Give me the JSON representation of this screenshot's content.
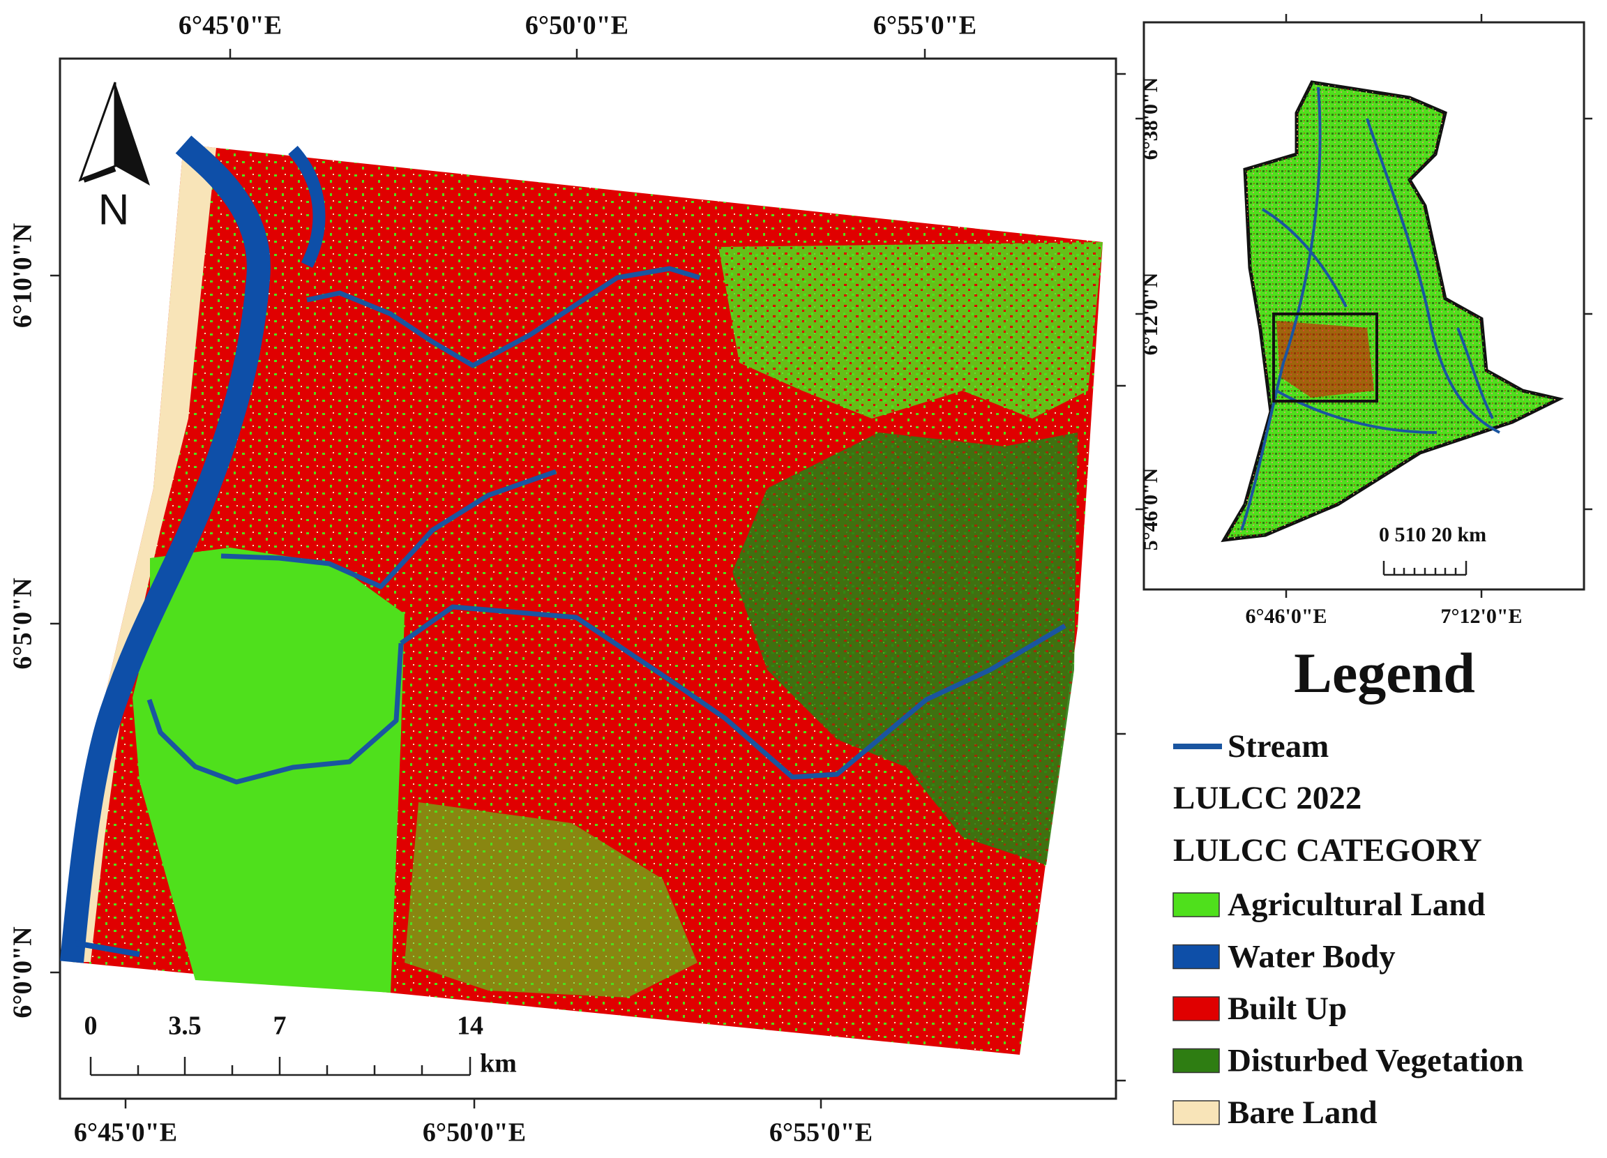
{
  "main_map": {
    "top_labels": [
      "6°45'0\"E",
      "6°50'0\"E",
      "6°55'0\"E"
    ],
    "bottom_labels": [
      "6°45'0\"E",
      "6°50'0\"E",
      "6°55'0\"E"
    ],
    "left_labels": [
      "6°10'0\"N",
      "6°5'0\"N",
      "6°0'0\"N"
    ],
    "north": "N",
    "scale_labels": [
      "0",
      "3.5",
      "7",
      "14"
    ],
    "scale_unit": "km"
  },
  "inset_map": {
    "left_labels": [
      "6°38'0\"N",
      "6°12'0\"N",
      "5°46'0\"N"
    ],
    "bottom_labels": [
      "6°46'0\"E",
      "7°12'0\"E"
    ],
    "scale_label": "0 510 20 km"
  },
  "legend": {
    "title": "Legend",
    "stream": {
      "name": "Stream",
      "color": "#1a55a0"
    },
    "year": "LULCC 2022",
    "category_title": "LULCC CATEGORY",
    "items": [
      {
        "name": "Agricultural Land",
        "color": "#4fe01c"
      },
      {
        "name": "Water Body",
        "color": "#0e4fa8"
      },
      {
        "name": "Built Up",
        "color": "#e00000"
      },
      {
        "name": "Disturbed Vegetation",
        "color": "#2e7d12"
      },
      {
        "name": "Bare Land",
        "color": "#f8e4b8"
      }
    ]
  }
}
